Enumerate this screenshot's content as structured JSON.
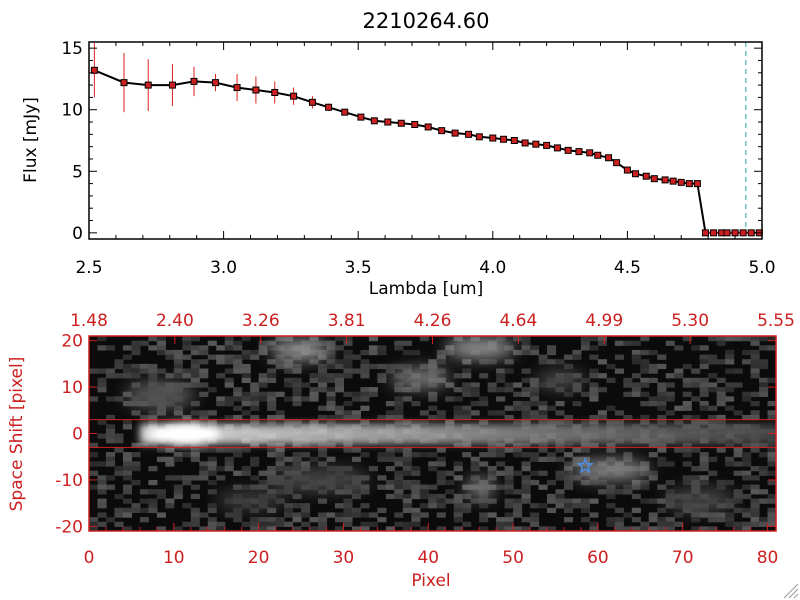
{
  "chart_data": [
    {
      "type": "line",
      "title": "2210264.60",
      "xlabel": "Lambda [um]",
      "ylabel": "Flux [mJy]",
      "xlim": [
        2.5,
        5.0
      ],
      "ylim": [
        -0.5,
        15.5
      ],
      "xticks": [
        "2.5",
        "3.0",
        "3.5",
        "4.0",
        "4.5",
        "5.0"
      ],
      "yticks": [
        "0",
        "5",
        "10",
        "15"
      ],
      "line_color": "#000000",
      "marker_color": "#cc2020",
      "error_color": "#dd2020",
      "marker_line_color": "#dd2020",
      "vline": {
        "x": 4.94,
        "color": "#2aa5a0"
      },
      "series": [
        {
          "x": [
            2.52,
            2.63,
            2.72,
            2.81,
            2.89,
            2.97,
            3.05,
            3.12,
            3.19,
            3.26,
            3.33,
            3.39,
            3.45,
            3.51,
            3.56,
            3.61,
            3.66,
            3.71,
            3.76,
            3.81,
            3.86,
            3.91,
            3.95,
            4.0,
            4.04,
            4.08,
            4.12,
            4.16,
            4.2,
            4.24,
            4.28,
            4.32,
            4.36,
            4.39,
            4.43,
            4.46,
            4.5,
            4.53,
            4.57,
            4.6,
            4.64,
            4.67,
            4.7,
            4.73,
            4.76,
            4.79,
            4.82,
            4.85,
            4.87,
            4.9,
            4.93,
            4.96,
            4.99
          ],
          "y": [
            13.2,
            12.2,
            12.0,
            12.0,
            12.3,
            12.2,
            11.8,
            11.6,
            11.4,
            11.1,
            10.6,
            10.2,
            9.8,
            9.4,
            9.1,
            9.0,
            8.9,
            8.8,
            8.6,
            8.3,
            8.1,
            8.0,
            7.8,
            7.7,
            7.6,
            7.5,
            7.3,
            7.2,
            7.1,
            6.9,
            6.7,
            6.6,
            6.5,
            6.3,
            6.1,
            5.7,
            5.1,
            4.8,
            4.6,
            4.4,
            4.3,
            4.2,
            4.1,
            4.0,
            4.0,
            0.0,
            0.0,
            0.0,
            0.0,
            0.0,
            0.0,
            0.0,
            0.0
          ],
          "yerr": [
            2.2,
            2.4,
            2.1,
            1.7,
            1.2,
            0.7,
            1.1,
            1.1,
            0.9,
            0.7,
            0.5,
            0.3,
            0.2,
            0.1,
            0.1,
            0.1,
            0.1,
            0.1,
            0.1,
            0.1,
            0.1,
            0.1,
            0.1,
            0.1,
            0.1,
            0.1,
            0.1,
            0.1,
            0.1,
            0.1,
            0.1,
            0.1,
            0.1,
            0.1,
            0.1,
            0.1,
            0.1,
            0.1,
            0.1,
            0.1,
            0.1,
            0.1,
            0.1,
            0.1,
            0.1,
            0.1,
            0.1,
            0.1,
            0.1,
            0.1,
            0.1,
            0.1,
            0.1
          ]
        }
      ]
    },
    {
      "type": "heatmap",
      "xlabel": "Pixel",
      "ylabel": "Space Shift [pixel]",
      "xlim": [
        0,
        81
      ],
      "ylim": [
        -21,
        21
      ],
      "xticks": [
        "0",
        "10",
        "20",
        "30",
        "40",
        "50",
        "60",
        "70",
        "80"
      ],
      "yticks": [
        "-20",
        "-10",
        "0",
        "10",
        "20"
      ],
      "top_axis_ticks": [
        "1.48",
        "2.40",
        "3.26",
        "3.81",
        "4.26",
        "4.64",
        "4.99",
        "5.30",
        "5.55"
      ],
      "axis_color": "#cc2020",
      "hlines": [
        3,
        -3
      ],
      "marker": {
        "symbol": "star",
        "x": 58.5,
        "y": -7,
        "color": "#4a8ee8"
      }
    }
  ]
}
